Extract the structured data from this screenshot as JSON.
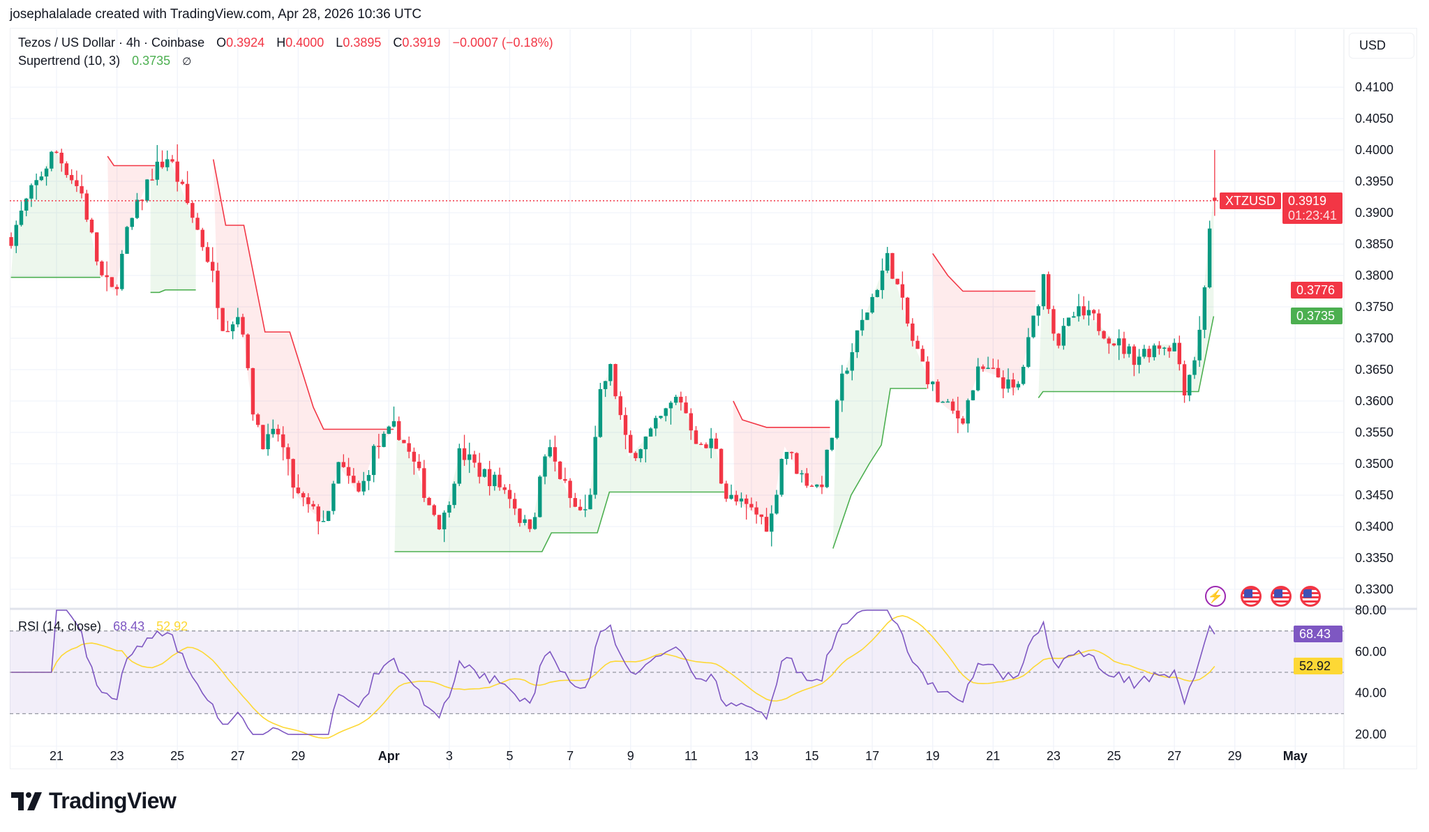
{
  "header": {
    "attribution": "josephalalade created with TradingView.com, Apr 28, 2026 10:36 UTC"
  },
  "legend": {
    "symbol": "Tezos / US Dollar · 4h · Coinbase",
    "o_label": "O",
    "o": "0.3924",
    "h_label": "H",
    "h": "0.4000",
    "l_label": "L",
    "l": "0.3895",
    "c_label": "C",
    "c": "0.3919",
    "change": "−0.0007 (−0.18%)",
    "indicator": "Supertrend (10, 3)",
    "indicator_value": "0.3735",
    "visibility_icon": "∅"
  },
  "currency": "USD",
  "badges": {
    "symbol": "XTZUSD",
    "last": "0.3919",
    "countdown": "01:23:41",
    "st_down": "0.3776",
    "st_up": "0.3735"
  },
  "rsi": {
    "label": "RSI (14, close)",
    "value": "68.43",
    "ma": "52.92",
    "ticks": [
      "80.00",
      "60.00",
      "40.00",
      "20.00"
    ],
    "levels": [
      70,
      50,
      30
    ]
  },
  "price_axis": {
    "ticks": [
      "0.4100",
      "0.4050",
      "0.4000",
      "0.3950",
      "0.3900",
      "0.3850",
      "0.3800",
      "0.3750",
      "0.3700",
      "0.3650",
      "0.3600",
      "0.3550",
      "0.3500",
      "0.3450",
      "0.3400",
      "0.3350",
      "0.3300"
    ]
  },
  "brand": {
    "logo_text": "TradingView"
  },
  "events": [
    {
      "icon": "lightning-icon"
    },
    {
      "icon": "us-flag-icon"
    },
    {
      "icon": "us-flag-icon"
    },
    {
      "icon": "us-flag-icon"
    }
  ],
  "colors": {
    "up": "#089981",
    "down": "#f23645",
    "st_up": "#4caf50",
    "st_down": "#f23645",
    "rsi": "#7e57c2",
    "rsi_ma": "#fdd835"
  },
  "chart_data": {
    "type": "candlestick",
    "title": "Tezos / US Dollar · 4h · Coinbase",
    "x_unit": "days since Mar 21",
    "x_ticks": [
      {
        "label": "21",
        "t": 0
      },
      {
        "label": "23",
        "t": 2
      },
      {
        "label": "25",
        "t": 4
      },
      {
        "label": "27",
        "t": 6
      },
      {
        "label": "29",
        "t": 8
      },
      {
        "label": "Apr",
        "t": 11
      },
      {
        "label": "3",
        "t": 13
      },
      {
        "label": "5",
        "t": 15
      },
      {
        "label": "7",
        "t": 17
      },
      {
        "label": "9",
        "t": 19
      },
      {
        "label": "11",
        "t": 21
      },
      {
        "label": "13",
        "t": 23
      },
      {
        "label": "15",
        "t": 25
      },
      {
        "label": "17",
        "t": 27
      },
      {
        "label": "19",
        "t": 29
      },
      {
        "label": "21",
        "t": 31
      },
      {
        "label": "23",
        "t": 33
      },
      {
        "label": "25",
        "t": 35
      },
      {
        "label": "27",
        "t": 37
      },
      {
        "label": "29",
        "t": 39
      },
      {
        "label": "May",
        "t": 41
      }
    ],
    "ylim": [
      0.3285,
      0.4125
    ],
    "close_path": [
      [
        -1.51,
        0.386
      ],
      [
        -0.97,
        0.392
      ],
      [
        -0.06,
        0.4
      ],
      [
        0.84,
        0.393
      ],
      [
        1.45,
        0.38
      ],
      [
        1.9,
        0.377
      ],
      [
        2.35,
        0.387
      ],
      [
        3.11,
        0.396
      ],
      [
        3.71,
        0.399
      ],
      [
        4.61,
        0.388
      ],
      [
        5.07,
        0.382
      ],
      [
        5.52,
        0.372
      ],
      [
        6.12,
        0.374
      ],
      [
        6.42,
        0.36
      ],
      [
        6.88,
        0.353
      ],
      [
        7.33,
        0.355
      ],
      [
        7.93,
        0.345
      ],
      [
        8.53,
        0.342
      ],
      [
        8.99,
        0.341
      ],
      [
        9.29,
        0.35
      ],
      [
        10.04,
        0.345
      ],
      [
        10.5,
        0.352
      ],
      [
        11.25,
        0.356
      ],
      [
        12.0,
        0.348
      ],
      [
        12.3,
        0.344
      ],
      [
        12.76,
        0.34
      ],
      [
        13.36,
        0.352
      ],
      [
        13.96,
        0.349
      ],
      [
        14.57,
        0.347
      ],
      [
        15.02,
        0.345
      ],
      [
        15.47,
        0.34
      ],
      [
        15.77,
        0.341
      ],
      [
        16.23,
        0.353
      ],
      [
        16.68,
        0.348
      ],
      [
        17.13,
        0.343
      ],
      [
        17.58,
        0.342
      ],
      [
        18.03,
        0.362
      ],
      [
        18.34,
        0.365
      ],
      [
        18.94,
        0.351
      ],
      [
        19.69,
        0.355
      ],
      [
        20.6,
        0.361
      ],
      [
        21.35,
        0.352
      ],
      [
        21.8,
        0.354
      ],
      [
        22.1,
        0.345
      ],
      [
        23.16,
        0.342
      ],
      [
        23.61,
        0.34
      ],
      [
        24.07,
        0.353
      ],
      [
        24.67,
        0.348
      ],
      [
        25.27,
        0.346
      ],
      [
        25.73,
        0.356
      ],
      [
        26.03,
        0.364
      ],
      [
        26.63,
        0.372
      ],
      [
        27.53,
        0.383
      ],
      [
        27.84,
        0.378
      ],
      [
        28.29,
        0.37
      ],
      [
        28.74,
        0.365
      ],
      [
        29.19,
        0.36
      ],
      [
        29.95,
        0.357
      ],
      [
        30.55,
        0.365
      ],
      [
        31.15,
        0.364
      ],
      [
        31.76,
        0.361
      ],
      [
        32.21,
        0.37
      ],
      [
        32.66,
        0.38
      ],
      [
        33.11,
        0.369
      ],
      [
        33.72,
        0.374
      ],
      [
        34.32,
        0.373
      ],
      [
        34.92,
        0.37
      ],
      [
        35.68,
        0.367
      ],
      [
        36.43,
        0.369
      ],
      [
        37.04,
        0.369
      ],
      [
        37.34,
        0.362
      ],
      [
        37.79,
        0.369
      ],
      [
        38.09,
        0.383
      ],
      [
        38.24,
        0.3924
      ]
    ],
    "last_candle": {
      "open": 0.3924,
      "high": 0.4,
      "low": 0.3895,
      "close": 0.3919
    },
    "supertrend": [
      {
        "dir": "up",
        "points": [
          [
            -1.51,
            0.3797
          ],
          [
            1.45,
            0.3797
          ]
        ]
      },
      {
        "dir": "down",
        "points": [
          [
            1.69,
            0.399
          ],
          [
            1.9,
            0.3975
          ],
          [
            3.26,
            0.3975
          ]
        ]
      },
      {
        "dir": "up",
        "points": [
          [
            3.11,
            0.3773
          ],
          [
            3.4,
            0.3773
          ],
          [
            3.6,
            0.3777
          ],
          [
            4.61,
            0.3777
          ]
        ]
      },
      {
        "dir": "down",
        "points": [
          [
            5.19,
            0.3985
          ],
          [
            5.6,
            0.388
          ],
          [
            6.2,
            0.388
          ],
          [
            6.9,
            0.371
          ],
          [
            7.72,
            0.371
          ],
          [
            8.5,
            0.359
          ],
          [
            8.84,
            0.3555
          ],
          [
            11.16,
            0.3555
          ]
        ]
      },
      {
        "dir": "up",
        "points": [
          [
            11.19,
            0.336
          ],
          [
            16.07,
            0.336
          ],
          [
            16.38,
            0.339
          ],
          [
            17.9,
            0.339
          ],
          [
            18.3,
            0.3455
          ],
          [
            22.1,
            0.3455
          ]
        ]
      },
      {
        "dir": "down",
        "points": [
          [
            22.4,
            0.36
          ],
          [
            22.7,
            0.357
          ],
          [
            23.5,
            0.3558
          ],
          [
            25.6,
            0.3558
          ]
        ]
      },
      {
        "dir": "up",
        "points": [
          [
            25.7,
            0.3365
          ],
          [
            26.3,
            0.345
          ],
          [
            26.9,
            0.35
          ],
          [
            27.3,
            0.353
          ],
          [
            27.6,
            0.362
          ],
          [
            28.8,
            0.362
          ]
        ]
      },
      {
        "dir": "down",
        "points": [
          [
            29.0,
            0.3835
          ],
          [
            29.5,
            0.38
          ],
          [
            30.0,
            0.3775
          ],
          [
            32.4,
            0.3775
          ]
        ]
      },
      {
        "dir": "up",
        "points": [
          [
            32.5,
            0.3605
          ],
          [
            32.65,
            0.3615
          ],
          [
            37.8,
            0.3615
          ],
          [
            38.3,
            0.3735
          ]
        ]
      }
    ],
    "rsi_period": 14,
    "rsi_ylim": [
      20,
      80
    ]
  }
}
